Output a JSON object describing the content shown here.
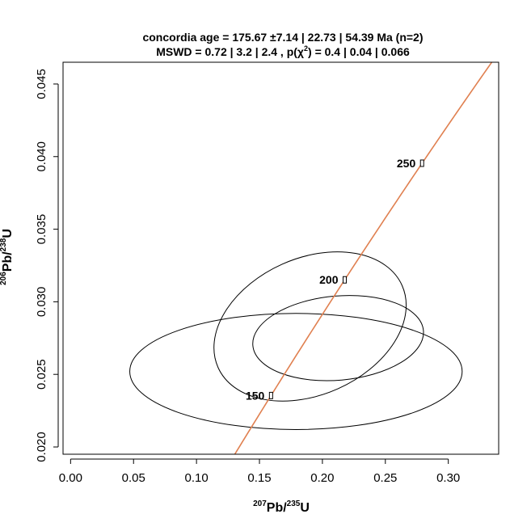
{
  "chart_data": {
    "type": "scatter",
    "title_line1": "concordia age = 175.67 ±7.14 | 22.73 | 54.39 Ma (n=2)",
    "title_line2_prefix": "MSWD = 0.72 | 3.2 | 2.4 , p(χ",
    "title_line2_sup": "2",
    "title_line2_suffix": ") = 0.4 | 0.04 | 0.066",
    "xlabel_sup1": "207",
    "xlabel_main1": "Pb/",
    "xlabel_sup2": "235",
    "xlabel_main2": "U",
    "ylabel_sup1": "206",
    "ylabel_main1": "Pb/",
    "ylabel_sup2": "238",
    "ylabel_main2": "U",
    "xlim": [
      -0.006,
      0.34
    ],
    "ylim": [
      0.0195,
      0.0465
    ],
    "x_ticks": [
      0.0,
      0.05,
      0.1,
      0.15,
      0.2,
      0.25,
      0.3
    ],
    "x_tick_labels": [
      "0.00",
      "0.05",
      "0.10",
      "0.15",
      "0.20",
      "0.25",
      "0.30"
    ],
    "y_ticks": [
      0.02,
      0.025,
      0.03,
      0.035,
      0.04,
      0.045
    ],
    "y_tick_labels": [
      "0.020",
      "0.025",
      "0.030",
      "0.035",
      "0.040",
      "0.045"
    ],
    "concordia_color": "#e08050",
    "concordia_ages_ma": [
      120,
      340
    ],
    "age_markers": [
      {
        "age": 150,
        "label": "150"
      },
      {
        "age": 200,
        "label": "200"
      },
      {
        "age": 250,
        "label": "250"
      }
    ],
    "ellipses": [
      {
        "cx": 0.1902,
        "cy": 0.0283,
        "rx": 0.08,
        "ry": 0.0047,
        "tilt_deg": 24
      },
      {
        "cx": 0.2125,
        "cy": 0.0275,
        "rx": 0.068,
        "ry": 0.0029,
        "tilt_deg": 5
      },
      {
        "cx": 0.179,
        "cy": 0.0252,
        "rx": 0.132,
        "ry": 0.004,
        "tilt_deg": 0
      }
    ],
    "grid": false,
    "legend": "none"
  }
}
